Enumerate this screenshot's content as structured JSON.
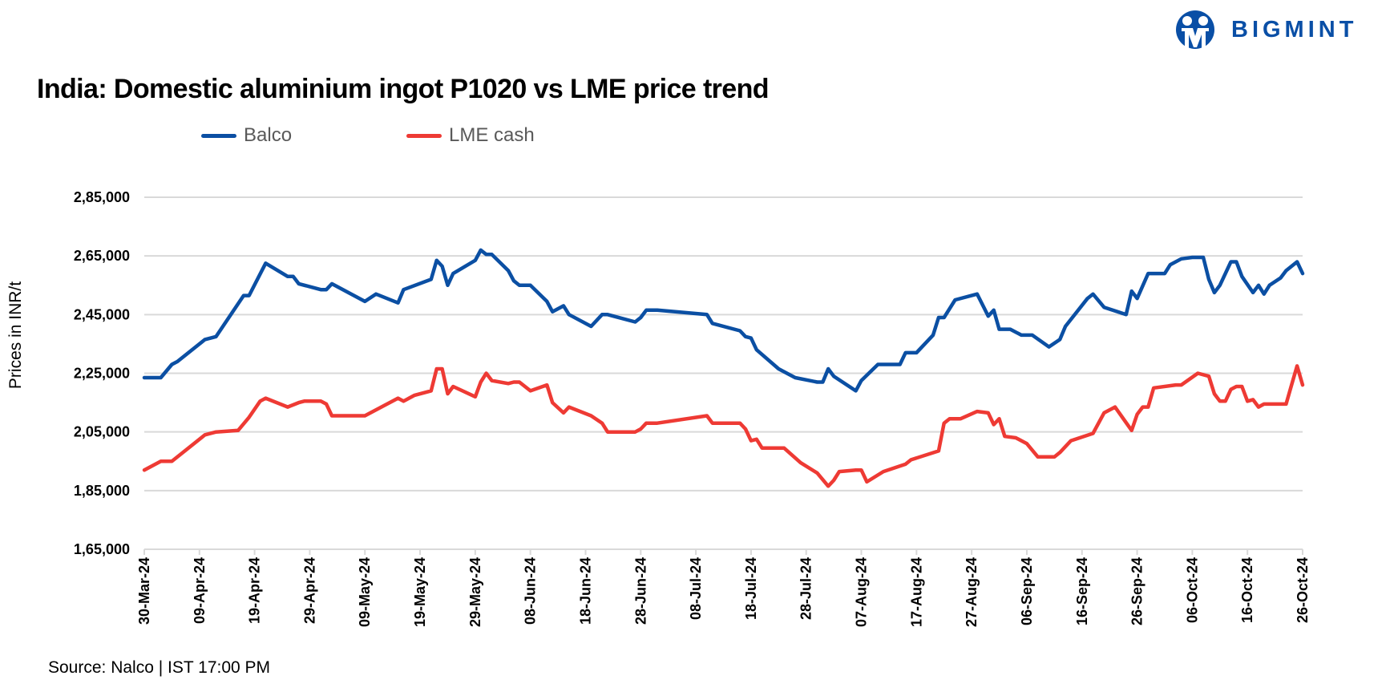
{
  "logo": {
    "text": "BIGMINT",
    "color": "#0a4fa6"
  },
  "chart_data": {
    "type": "line",
    "title": "India: Domestic aluminium ingot P1020 vs LME price trend",
    "ylabel": "Prices in INR/t",
    "xlabel": "",
    "source": "Source: Nalco | IST 17:00 PM",
    "ylim": [
      165000,
      285000
    ],
    "xlim": [
      "2024-03-30",
      "2024-10-26"
    ],
    "grid": true,
    "legend_position": "top",
    "y_ticks": [
      {
        "value": 285000,
        "label": "2,85,000"
      },
      {
        "value": 265000,
        "label": "2,65,000"
      },
      {
        "value": 245000,
        "label": "2,45,000"
      },
      {
        "value": 225000,
        "label": "2,25,000"
      },
      {
        "value": 205000,
        "label": "2,05,000"
      },
      {
        "value": 185000,
        "label": "1,85,000"
      },
      {
        "value": 165000,
        "label": "1,65,000"
      }
    ],
    "x_ticks": [
      {
        "date": "2024-03-30",
        "label": "30-Mar-24"
      },
      {
        "date": "2024-04-09",
        "label": "09-Apr-24"
      },
      {
        "date": "2024-04-19",
        "label": "19-Apr-24"
      },
      {
        "date": "2024-04-29",
        "label": "29-Apr-24"
      },
      {
        "date": "2024-05-09",
        "label": "09-May-24"
      },
      {
        "date": "2024-05-19",
        "label": "19-May-24"
      },
      {
        "date": "2024-05-29",
        "label": "29-May-24"
      },
      {
        "date": "2024-06-08",
        "label": "08-Jun-24"
      },
      {
        "date": "2024-06-18",
        "label": "18-Jun-24"
      },
      {
        "date": "2024-06-28",
        "label": "28-Jun-24"
      },
      {
        "date": "2024-07-08",
        "label": "08-Jul-24"
      },
      {
        "date": "2024-07-18",
        "label": "18-Jul-24"
      },
      {
        "date": "2024-07-28",
        "label": "28-Jul-24"
      },
      {
        "date": "2024-08-07",
        "label": "07-Aug-24"
      },
      {
        "date": "2024-08-17",
        "label": "17-Aug-24"
      },
      {
        "date": "2024-08-27",
        "label": "27-Aug-24"
      },
      {
        "date": "2024-09-06",
        "label": "06-Sep-24"
      },
      {
        "date": "2024-09-16",
        "label": "16-Sep-24"
      },
      {
        "date": "2024-09-26",
        "label": "26-Sep-24"
      },
      {
        "date": "2024-10-06",
        "label": "06-Oct-24"
      },
      {
        "date": "2024-10-16",
        "label": "16-Oct-24"
      },
      {
        "date": "2024-10-26",
        "label": "26-Oct-24"
      }
    ],
    "series": [
      {
        "name": "Balco",
        "color": "#0b4fa3",
        "points": [
          [
            "2024-03-30",
            223500
          ],
          [
            "2024-04-02",
            223500
          ],
          [
            "2024-04-04",
            228000
          ],
          [
            "2024-04-05",
            229000
          ],
          [
            "2024-04-10",
            236500
          ],
          [
            "2024-04-12",
            237500
          ],
          [
            "2024-04-17",
            251500
          ],
          [
            "2024-04-18",
            251500
          ],
          [
            "2024-04-21",
            262500
          ],
          [
            "2024-04-25",
            258000
          ],
          [
            "2024-04-26",
            258000
          ],
          [
            "2024-04-27",
            255500
          ],
          [
            "2024-05-01",
            253500
          ],
          [
            "2024-05-02",
            253500
          ],
          [
            "2024-05-03",
            255500
          ],
          [
            "2024-05-09",
            249500
          ],
          [
            "2024-05-11",
            252000
          ],
          [
            "2024-05-15",
            249000
          ],
          [
            "2024-05-16",
            253500
          ],
          [
            "2024-05-21",
            257000
          ],
          [
            "2024-05-22",
            263500
          ],
          [
            "2024-05-23",
            261500
          ],
          [
            "2024-05-24",
            255000
          ],
          [
            "2024-05-25",
            259000
          ],
          [
            "2024-05-29",
            263500
          ],
          [
            "2024-05-30",
            267000
          ],
          [
            "2024-05-31",
            265500
          ],
          [
            "2024-06-01",
            265500
          ],
          [
            "2024-06-04",
            260000
          ],
          [
            "2024-06-05",
            256500
          ],
          [
            "2024-06-06",
            255000
          ],
          [
            "2024-06-08",
            255000
          ],
          [
            "2024-06-11",
            249500
          ],
          [
            "2024-06-12",
            246000
          ],
          [
            "2024-06-14",
            248000
          ],
          [
            "2024-06-15",
            245000
          ],
          [
            "2024-06-19",
            241000
          ],
          [
            "2024-06-21",
            245000
          ],
          [
            "2024-06-22",
            245000
          ],
          [
            "2024-06-27",
            242500
          ],
          [
            "2024-06-28",
            244000
          ],
          [
            "2024-06-29",
            246500
          ],
          [
            "2024-07-01",
            246500
          ],
          [
            "2024-07-10",
            245000
          ],
          [
            "2024-07-11",
            242000
          ],
          [
            "2024-07-16",
            239500
          ],
          [
            "2024-07-17",
            237500
          ],
          [
            "2024-07-18",
            237000
          ],
          [
            "2024-07-19",
            233000
          ],
          [
            "2024-07-23",
            226500
          ],
          [
            "2024-07-26",
            223500
          ],
          [
            "2024-07-30",
            222000
          ],
          [
            "2024-07-31",
            222000
          ],
          [
            "2024-08-01",
            226500
          ],
          [
            "2024-08-02",
            224000
          ],
          [
            "2024-08-06",
            219000
          ],
          [
            "2024-08-07",
            222500
          ],
          [
            "2024-08-10",
            228000
          ],
          [
            "2024-08-14",
            228000
          ],
          [
            "2024-08-15",
            232000
          ],
          [
            "2024-08-17",
            232000
          ],
          [
            "2024-08-20",
            238000
          ],
          [
            "2024-08-21",
            244000
          ],
          [
            "2024-08-22",
            244000
          ],
          [
            "2024-08-24",
            250000
          ],
          [
            "2024-08-28",
            252000
          ],
          [
            "2024-08-30",
            244500
          ],
          [
            "2024-08-31",
            246500
          ],
          [
            "2024-09-01",
            240000
          ],
          [
            "2024-09-03",
            240000
          ],
          [
            "2024-09-05",
            238000
          ],
          [
            "2024-09-07",
            238000
          ],
          [
            "2024-09-10",
            234000
          ],
          [
            "2024-09-12",
            236500
          ],
          [
            "2024-09-13",
            241000
          ],
          [
            "2024-09-17",
            250500
          ],
          [
            "2024-09-18",
            252000
          ],
          [
            "2024-09-20",
            247500
          ],
          [
            "2024-09-24",
            245000
          ],
          [
            "2024-09-25",
            253000
          ],
          [
            "2024-09-26",
            250500
          ],
          [
            "2024-09-28",
            259000
          ],
          [
            "2024-10-01",
            259000
          ],
          [
            "2024-10-02",
            262000
          ],
          [
            "2024-10-04",
            264000
          ],
          [
            "2024-10-06",
            264500
          ],
          [
            "2024-10-08",
            264500
          ],
          [
            "2024-10-09",
            257000
          ],
          [
            "2024-10-10",
            252500
          ],
          [
            "2024-10-11",
            255000
          ],
          [
            "2024-10-13",
            263000
          ],
          [
            "2024-10-14",
            263000
          ],
          [
            "2024-10-15",
            258000
          ],
          [
            "2024-10-17",
            252500
          ],
          [
            "2024-10-18",
            255000
          ],
          [
            "2024-10-19",
            252000
          ],
          [
            "2024-10-20",
            255000
          ],
          [
            "2024-10-22",
            257500
          ],
          [
            "2024-10-23",
            260000
          ],
          [
            "2024-10-25",
            263000
          ],
          [
            "2024-10-26",
            259000
          ]
        ]
      },
      {
        "name": "LME cash",
        "color": "#ee3a34",
        "points": [
          [
            "2024-03-30",
            192000
          ],
          [
            "2024-04-02",
            195000
          ],
          [
            "2024-04-04",
            195000
          ],
          [
            "2024-04-06",
            198000
          ],
          [
            "2024-04-10",
            204000
          ],
          [
            "2024-04-12",
            205000
          ],
          [
            "2024-04-16",
            205500
          ],
          [
            "2024-04-18",
            210000
          ],
          [
            "2024-04-20",
            215500
          ],
          [
            "2024-04-21",
            216500
          ],
          [
            "2024-04-25",
            213500
          ],
          [
            "2024-04-27",
            215000
          ],
          [
            "2024-04-28",
            215500
          ],
          [
            "2024-05-01",
            215500
          ],
          [
            "2024-05-02",
            214500
          ],
          [
            "2024-05-03",
            210500
          ],
          [
            "2024-05-09",
            210500
          ],
          [
            "2024-05-15",
            216500
          ],
          [
            "2024-05-16",
            215500
          ],
          [
            "2024-05-18",
            217500
          ],
          [
            "2024-05-21",
            219000
          ],
          [
            "2024-05-22",
            226500
          ],
          [
            "2024-05-23",
            226500
          ],
          [
            "2024-05-24",
            218000
          ],
          [
            "2024-05-25",
            220500
          ],
          [
            "2024-05-29",
            217000
          ],
          [
            "2024-05-30",
            222000
          ],
          [
            "2024-05-31",
            225000
          ],
          [
            "2024-06-01",
            222500
          ],
          [
            "2024-06-04",
            221500
          ],
          [
            "2024-06-05",
            222000
          ],
          [
            "2024-06-06",
            222000
          ],
          [
            "2024-06-08",
            219000
          ],
          [
            "2024-06-11",
            221000
          ],
          [
            "2024-06-12",
            215000
          ],
          [
            "2024-06-14",
            211500
          ],
          [
            "2024-06-15",
            213500
          ],
          [
            "2024-06-19",
            210500
          ],
          [
            "2024-06-21",
            208000
          ],
          [
            "2024-06-22",
            205000
          ],
          [
            "2024-06-27",
            205000
          ],
          [
            "2024-06-28",
            206000
          ],
          [
            "2024-06-29",
            208000
          ],
          [
            "2024-07-01",
            208000
          ],
          [
            "2024-07-10",
            210500
          ],
          [
            "2024-07-11",
            208000
          ],
          [
            "2024-07-16",
            208000
          ],
          [
            "2024-07-17",
            206000
          ],
          [
            "2024-07-18",
            202000
          ],
          [
            "2024-07-19",
            202500
          ],
          [
            "2024-07-20",
            199500
          ],
          [
            "2024-07-24",
            199500
          ],
          [
            "2024-07-27",
            194500
          ],
          [
            "2024-07-30",
            191000
          ],
          [
            "2024-08-01",
            186500
          ],
          [
            "2024-08-02",
            188500
          ],
          [
            "2024-08-03",
            191500
          ],
          [
            "2024-08-06",
            192000
          ],
          [
            "2024-08-07",
            192000
          ],
          [
            "2024-08-08",
            188000
          ],
          [
            "2024-08-11",
            191500
          ],
          [
            "2024-08-15",
            194000
          ],
          [
            "2024-08-16",
            195500
          ],
          [
            "2024-08-21",
            198500
          ],
          [
            "2024-08-22",
            208000
          ],
          [
            "2024-08-23",
            209500
          ],
          [
            "2024-08-25",
            209500
          ],
          [
            "2024-08-28",
            212000
          ],
          [
            "2024-08-30",
            211500
          ],
          [
            "2024-08-31",
            207500
          ],
          [
            "2024-09-01",
            209500
          ],
          [
            "2024-09-02",
            203500
          ],
          [
            "2024-09-04",
            203000
          ],
          [
            "2024-09-06",
            201000
          ],
          [
            "2024-09-08",
            196500
          ],
          [
            "2024-09-11",
            196500
          ],
          [
            "2024-09-12",
            198000
          ],
          [
            "2024-09-14",
            202000
          ],
          [
            "2024-09-18",
            204500
          ],
          [
            "2024-09-20",
            211500
          ],
          [
            "2024-09-22",
            213500
          ],
          [
            "2024-09-25",
            205500
          ],
          [
            "2024-09-26",
            211000
          ],
          [
            "2024-09-27",
            213500
          ],
          [
            "2024-09-28",
            213500
          ],
          [
            "2024-09-29",
            220000
          ],
          [
            "2024-10-03",
            221000
          ],
          [
            "2024-10-04",
            221000
          ],
          [
            "2024-10-07",
            225000
          ],
          [
            "2024-10-09",
            224000
          ],
          [
            "2024-10-10",
            218000
          ],
          [
            "2024-10-11",
            215500
          ],
          [
            "2024-10-12",
            215500
          ],
          [
            "2024-10-13",
            219500
          ],
          [
            "2024-10-14",
            220500
          ],
          [
            "2024-10-15",
            220500
          ],
          [
            "2024-10-16",
            215500
          ],
          [
            "2024-10-17",
            216000
          ],
          [
            "2024-10-18",
            213500
          ],
          [
            "2024-10-19",
            214500
          ],
          [
            "2024-10-23",
            214500
          ],
          [
            "2024-10-24",
            221000
          ],
          [
            "2024-10-25",
            227500
          ],
          [
            "2024-10-26",
            221000
          ]
        ]
      }
    ]
  }
}
